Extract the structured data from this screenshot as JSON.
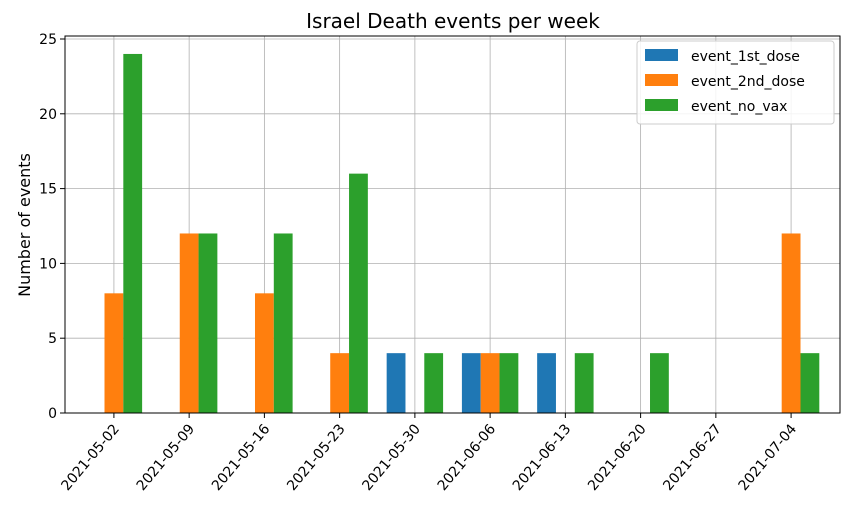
{
  "chart_data": {
    "type": "bar",
    "title": "Israel Death events per week",
    "xlabel": "",
    "ylabel": "Number of events",
    "categories": [
      "2021-05-02",
      "2021-05-09",
      "2021-05-16",
      "2021-05-23",
      "2021-05-30",
      "2021-06-06",
      "2021-06-13",
      "2021-06-20",
      "2021-06-27",
      "2021-07-04"
    ],
    "series": [
      {
        "name": "event_1st_dose",
        "color": "#1f77b4",
        "values": [
          0,
          0,
          0,
          0,
          4,
          4,
          4,
          0,
          0,
          0
        ]
      },
      {
        "name": "event_2nd_dose",
        "color": "#ff7f0e",
        "values": [
          8,
          12,
          8,
          4,
          0,
          4,
          0,
          0,
          0,
          12
        ]
      },
      {
        "name": "event_no_vax",
        "color": "#2ca02c",
        "values": [
          24,
          12,
          12,
          16,
          4,
          4,
          4,
          4,
          0,
          4
        ]
      }
    ],
    "ylim": [
      0,
      25.2
    ],
    "yticks": [
      0,
      5,
      10,
      15,
      20,
      25
    ],
    "grid": true,
    "legend_position": "top-right"
  }
}
